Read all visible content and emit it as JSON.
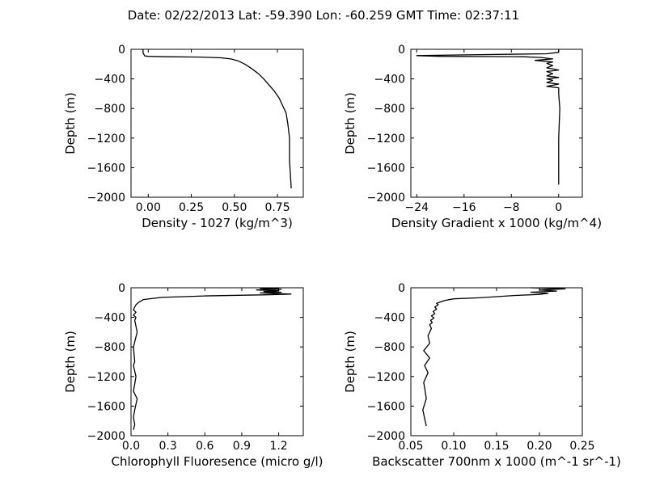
{
  "title": "Date: 02/22/2013  Lat:  -59.390 Lon:  -60.259  GMT Time: 02:37:11",
  "chart_data": [
    {
      "type": "line",
      "xlabel": "Density - 1027 (kg/m^3)",
      "ylabel": "Depth (m)",
      "xlim": [
        -0.1,
        0.9
      ],
      "ylim": [
        -2000,
        0
      ],
      "xticks": [
        0.0,
        0.25,
        0.5,
        0.75
      ],
      "xtick_labels": [
        "0.00",
        "0.25",
        "0.50",
        "0.75"
      ],
      "yticks": [
        0,
        -400,
        -800,
        -1200,
        -1600,
        -2000
      ],
      "ytick_labels": [
        "0",
        "−400",
        "−800",
        "−1200",
        "−1600",
        "−2000"
      ],
      "series": [
        {
          "x": [
            -0.03,
            -0.03,
            -0.02,
            0.0,
            0.1,
            0.3,
            0.42,
            0.48,
            0.52,
            0.56,
            0.6,
            0.64,
            0.67,
            0.7,
            0.73,
            0.76,
            0.78,
            0.8,
            0.81,
            0.82,
            0.82,
            0.83
          ],
          "y": [
            0,
            -50,
            -90,
            -95,
            -100,
            -105,
            -115,
            -130,
            -155,
            -200,
            -260,
            -330,
            -400,
            -480,
            -560,
            -660,
            -760,
            -860,
            -1000,
            -1200,
            -1500,
            -1880
          ]
        }
      ]
    },
    {
      "type": "line",
      "xlabel": "Density Gradient x 1000 (kg/m^4)",
      "ylabel": "Depth (m)",
      "xlim": [
        -25,
        4
      ],
      "ylim": [
        -2000,
        0
      ],
      "xticks": [
        -24,
        -16,
        -8,
        0
      ],
      "xtick_labels": [
        "−24",
        "−16",
        "−8",
        "0"
      ],
      "yticks": [
        0,
        -400,
        -800,
        -1200,
        -1600,
        -2000
      ],
      "ytick_labels": [
        "0",
        "−400",
        "−800",
        "−1200",
        "−1600",
        "−2000"
      ],
      "series": [
        {
          "x": [
            0,
            0,
            -2,
            -16,
            -24,
            -20,
            -6,
            -3,
            -1,
            -4,
            -1,
            -2,
            -1,
            -2,
            0,
            -2,
            -1,
            -2,
            0,
            -2,
            -1,
            -2,
            0,
            -2,
            0,
            0,
            0.2,
            0.1,
            0,
            0,
            0
          ],
          "y": [
            0,
            -40,
            -60,
            -75,
            -85,
            -95,
            -100,
            -110,
            -130,
            -150,
            -170,
            -190,
            -220,
            -250,
            -280,
            -300,
            -330,
            -360,
            -380,
            -400,
            -420,
            -450,
            -470,
            -500,
            -520,
            -600,
            -800,
            -1000,
            -1200,
            -1500,
            -1830
          ]
        }
      ]
    },
    {
      "type": "line",
      "xlabel": "Chlorophyll Fluoresence (micro g/l)",
      "ylabel": "Depth (m)",
      "xlim": [
        0.0,
        1.4
      ],
      "ylim": [
        -2000,
        0
      ],
      "xticks": [
        0.0,
        0.3,
        0.6,
        0.9,
        1.2
      ],
      "xtick_labels": [
        "0.0",
        "0.3",
        "0.6",
        "0.9",
        "1.2"
      ],
      "yticks": [
        0,
        -400,
        -800,
        -1200,
        -1600,
        -2000
      ],
      "ytick_labels": [
        "0",
        "−400",
        "−800",
        "−1200",
        "−1600",
        "−2000"
      ],
      "series": [
        {
          "x": [
            1.2,
            1.05,
            1.22,
            1.02,
            1.2,
            1.08,
            1.22,
            1.05,
            1.3,
            1.1,
            0.6,
            0.25,
            0.1,
            0.06,
            0.04,
            0.03,
            0.02,
            0.04,
            0.02,
            0.04,
            0.03,
            0.05,
            0.02,
            0.03,
            0.02,
            0.04,
            0.03,
            0.02,
            0.05,
            0.03,
            0.02,
            0.03,
            0.02
          ],
          "y": [
            -5,
            -10,
            -20,
            -30,
            -40,
            -50,
            -60,
            -70,
            -85,
            -95,
            -110,
            -130,
            -160,
            -200,
            -230,
            -260,
            -300,
            -330,
            -370,
            -400,
            -440,
            -600,
            -800,
            -1000,
            -1050,
            -1200,
            -1300,
            -1400,
            -1500,
            -1650,
            -1750,
            -1850,
            -1920
          ]
        }
      ]
    },
    {
      "type": "line",
      "xlabel": "Backscatter 700nm x 1000 (m^-1 sr^-1)",
      "ylabel": "Depth (m)",
      "xlim": [
        0.05,
        0.25
      ],
      "ylim": [
        -2000,
        0
      ],
      "xticks": [
        0.05,
        0.1,
        0.15,
        0.2,
        0.25
      ],
      "xtick_labels": [
        "0.05",
        "0.10",
        "0.15",
        "0.20",
        "0.25"
      ],
      "yticks": [
        0,
        -400,
        -800,
        -1200,
        -1600,
        -2000
      ],
      "ytick_labels": [
        "0",
        "−400",
        "−800",
        "−1200",
        "−1600",
        "−2000"
      ],
      "series": [
        {
          "x": [
            0.19,
            0.23,
            0.2,
            0.22,
            0.19,
            0.21,
            0.2,
            0.17,
            0.15,
            0.13,
            0.1,
            0.09,
            0.085,
            0.08,
            0.082,
            0.078,
            0.08,
            0.076,
            0.078,
            0.074,
            0.077,
            0.073,
            0.075,
            0.072,
            0.074,
            0.07,
            0.072,
            0.065,
            0.072,
            0.066,
            0.07,
            0.068,
            0.065,
            0.066,
            0.068,
            0.064,
            0.068
          ],
          "y": [
            0,
            -15,
            -30,
            -45,
            -60,
            -75,
            -90,
            -105,
            -120,
            -135,
            -150,
            -170,
            -190,
            -210,
            -230,
            -260,
            -290,
            -320,
            -350,
            -380,
            -410,
            -440,
            -470,
            -500,
            -550,
            -650,
            -750,
            -850,
            -950,
            -1050,
            -1150,
            -1200,
            -1280,
            -1350,
            -1500,
            -1650,
            -1870
          ]
        }
      ]
    }
  ]
}
